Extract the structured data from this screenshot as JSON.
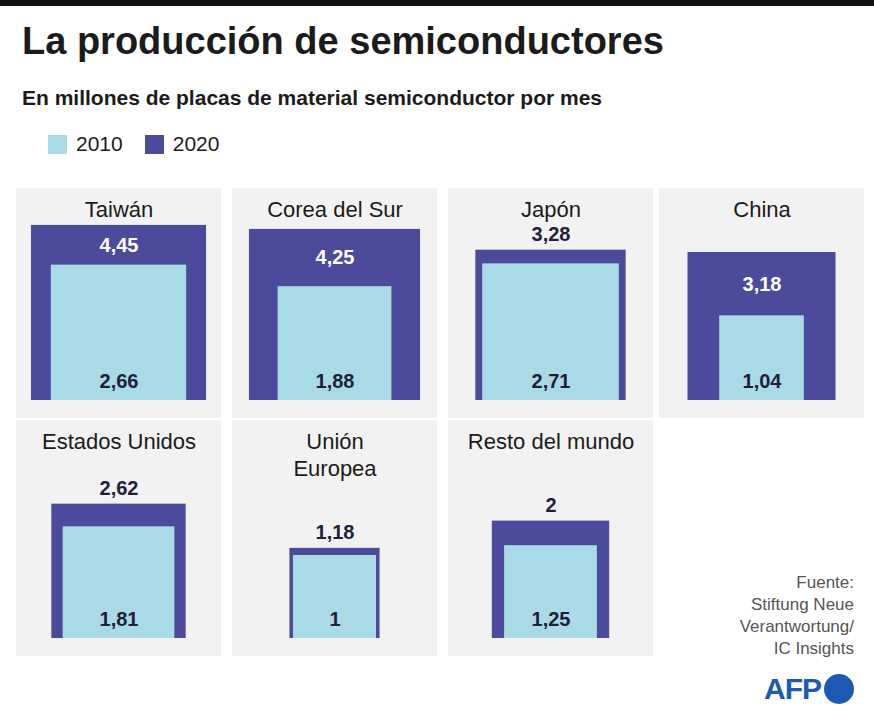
{
  "chart_data": {
    "type": "nested_square",
    "title": "La producción de semiconductores",
    "subtitle": "En millones de placas de material semiconductor por mes",
    "categories": [
      "Taiwán",
      "Corea del Sur",
      "Japón",
      "China",
      "Estados Unidos",
      "Unión\nEuropea",
      "Resto del mundo"
    ],
    "series": [
      {
        "name": "2010",
        "color": "#a8dbe6",
        "values": [
          2.66,
          1.88,
          2.71,
          1.04,
          1.81,
          1,
          1.25
        ],
        "value_labels": [
          "2,66",
          "1,88",
          "2,71",
          "1,04",
          "1,81",
          "1",
          "1,25"
        ]
      },
      {
        "name": "2020",
        "color": "#4b4a9b",
        "values": [
          4.45,
          4.25,
          3.28,
          3.18,
          2.62,
          1.18,
          2
        ],
        "value_labels": [
          "4,45",
          "4,25",
          "3,28",
          "3,18",
          "2,62",
          "1,18",
          "2"
        ]
      }
    ],
    "data_labels": true,
    "tick_labels": false,
    "legend": "top-left",
    "source": "Fuente:\nStiftung Neue\nVerantwortung/\nIC Insights",
    "credit": "AFP"
  }
}
